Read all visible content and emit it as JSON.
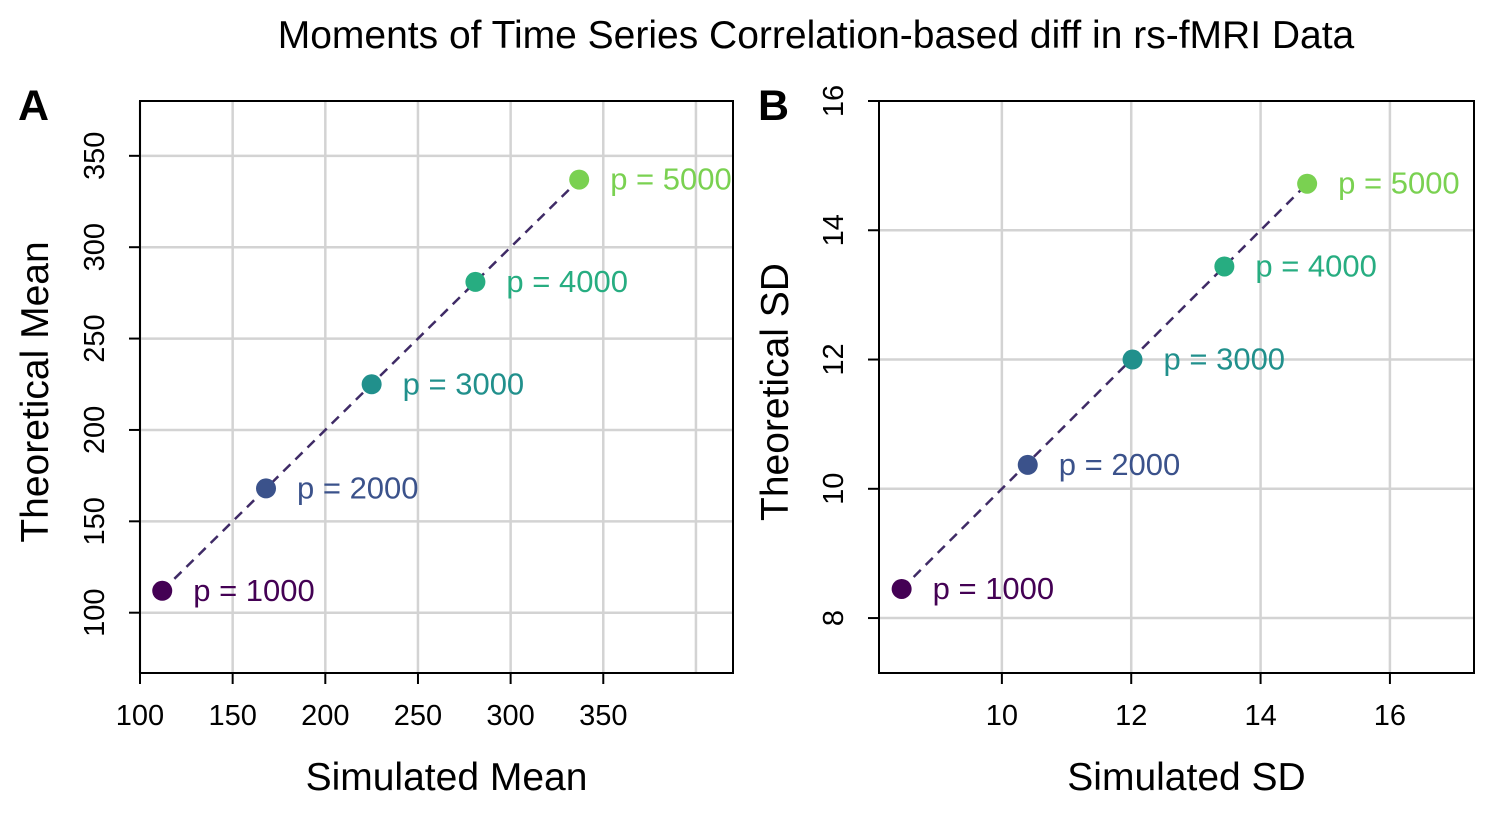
{
  "title": "Moments of Time Series Correlation-based diff in rs-fMRI Data",
  "colors": {
    "p1000": "#440154",
    "p2000": "#3B528B",
    "p3000": "#21908C",
    "p4000": "#27AD81",
    "p5000": "#7AD151",
    "reference_line": "#3F2B66",
    "grid": "#D3D3D3"
  },
  "chart_data": [
    {
      "panel": "A",
      "type": "scatter",
      "xlabel": "Simulated Mean",
      "ylabel": "Theoretical Mean",
      "xlim": [
        100,
        420
      ],
      "ylim": [
        67,
        380
      ],
      "x_ticks": [
        100,
        150,
        200,
        250,
        300,
        350
      ],
      "y_ticks": [
        100,
        150,
        200,
        250,
        300,
        350
      ],
      "grid_x": [
        100,
        150,
        200,
        250,
        300,
        350,
        400
      ],
      "grid_y": [
        100,
        150,
        200,
        250,
        300,
        350
      ],
      "grid": true,
      "reference_line": "y = x (dashed)",
      "points": [
        {
          "label": "p = 1000",
          "x": 112,
          "y": 112,
          "color_key": "p1000"
        },
        {
          "label": "p = 2000",
          "x": 168,
          "y": 168,
          "color_key": "p2000"
        },
        {
          "label": "p = 3000",
          "x": 225,
          "y": 225,
          "color_key": "p3000"
        },
        {
          "label": "p = 4000",
          "x": 281,
          "y": 281,
          "color_key": "p4000"
        },
        {
          "label": "p = 5000",
          "x": 337,
          "y": 337,
          "color_key": "p5000"
        }
      ]
    },
    {
      "panel": "B",
      "type": "scatter",
      "xlabel": "Simulated SD",
      "ylabel": "Theoretical SD",
      "xlim": [
        8.1,
        17.3
      ],
      "ylim": [
        7.15,
        16.0
      ],
      "x_ticks": [
        10,
        12,
        14,
        16
      ],
      "y_ticks": [
        8,
        10,
        12,
        14,
        16
      ],
      "grid_x": [
        10,
        12,
        14,
        16
      ],
      "grid_y": [
        8,
        10,
        12,
        14
      ],
      "grid": true,
      "reference_line": "y = x (dashed)",
      "points": [
        {
          "label": "p = 1000",
          "x": 8.45,
          "y": 8.45,
          "color_key": "p1000"
        },
        {
          "label": "p = 2000",
          "x": 10.4,
          "y": 10.37,
          "color_key": "p2000"
        },
        {
          "label": "p = 3000",
          "x": 12.02,
          "y": 12.0,
          "color_key": "p3000"
        },
        {
          "label": "p = 4000",
          "x": 13.44,
          "y": 13.44,
          "color_key": "p4000"
        },
        {
          "label": "p = 5000",
          "x": 14.72,
          "y": 14.72,
          "color_key": "p5000"
        }
      ]
    }
  ]
}
